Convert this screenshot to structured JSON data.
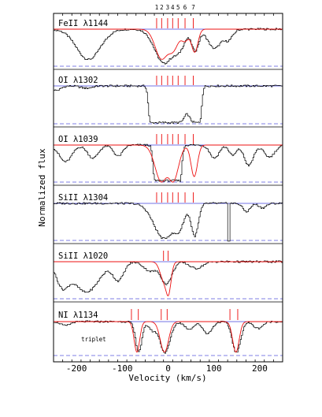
{
  "chart_data": {
    "type": "line",
    "xlabel": "Velocity (km/s)",
    "ylabel": "Normalized flux",
    "xlim": [
      -250,
      250
    ],
    "x_ticks": [
      -200,
      -100,
      0,
      100,
      200
    ],
    "x_tick_labels": [
      "-200",
      "-100",
      "0",
      "100",
      "200"
    ],
    "components": {
      "labels": [
        "1",
        "2",
        "3",
        "4",
        "5",
        "6",
        "7"
      ],
      "velocities": [
        -25,
        -14,
        -1,
        10,
        22,
        37,
        55
      ]
    },
    "colors": {
      "data": "#000000",
      "model": "#ee1111",
      "continuum": "#4444dd",
      "zero": "#5555dd",
      "ticks": "#ee2222"
    },
    "panels": [
      {
        "name": "FeII λ1144",
        "label": "FeII λ1144",
        "tick_velocities": [
          -25,
          -14,
          -1,
          10,
          22,
          37,
          55
        ],
        "absorption": [
          {
            "v": -175,
            "depth": 0.82,
            "width": 26
          },
          {
            "v": -10,
            "depth": 0.92,
            "width": 20
          },
          {
            "v": 20,
            "depth": 0.55,
            "width": 14
          },
          {
            "v": 58,
            "depth": 0.58,
            "width": 8
          },
          {
            "v": 100,
            "depth": 0.52,
            "width": 14
          },
          {
            "v": 130,
            "depth": 0.28,
            "width": 10
          }
        ],
        "model": [
          {
            "v": -14,
            "depth": 0.8,
            "width": 14
          },
          {
            "v": 10,
            "depth": 0.55,
            "width": 12
          },
          {
            "v": 37,
            "depth": 0.3,
            "width": 8
          },
          {
            "v": 58,
            "depth": 0.62,
            "width": 7
          }
        ]
      },
      {
        "name": "OI λ1302",
        "label": "OI λ1302",
        "tick_velocities": [
          -25,
          -14,
          -1,
          10,
          22,
          37,
          55
        ],
        "absorption": [
          {
            "v": -245,
            "depth": 0.12,
            "width": 10
          },
          {
            "v": -180,
            "depth": 0.06,
            "width": 12
          }
        ],
        "saturated": {
          "from": -40,
          "to": 68,
          "floor": 0.03,
          "bump": {
            "v": 40,
            "height": 0.22,
            "width": 6
          }
        },
        "model": []
      },
      {
        "name": "OI λ1039",
        "label": "OI λ1039",
        "tick_velocities": [
          -25,
          -14,
          -1,
          10,
          22,
          37,
          55
        ],
        "absorption": [
          {
            "v": -225,
            "depth": 0.45,
            "width": 14
          },
          {
            "v": -165,
            "depth": 0.35,
            "width": 12
          },
          {
            "v": -110,
            "depth": 0.3,
            "width": 10
          },
          {
            "v": 100,
            "depth": 0.35,
            "width": 10
          },
          {
            "v": 140,
            "depth": 0.28,
            "width": 8
          },
          {
            "v": 175,
            "depth": 0.55,
            "width": 10
          },
          {
            "v": 220,
            "depth": 0.32,
            "width": 12
          }
        ],
        "saturated": {
          "from": -30,
          "to": 25,
          "floor": 0.04,
          "bump": null
        },
        "model": [
          {
            "v": -14,
            "depth": 1.0,
            "width": 14
          },
          {
            "v": 10,
            "depth": 1.0,
            "width": 12
          },
          {
            "v": 57,
            "depth": 0.85,
            "width": 7
          }
        ]
      },
      {
        "name": "SiII λ1304",
        "label": "SiII λ1304",
        "tick_velocities": [
          -25,
          -14,
          -1,
          10,
          22,
          37,
          55
        ],
        "absorption": [
          {
            "v": -10,
            "depth": 0.95,
            "width": 22
          },
          {
            "v": 20,
            "depth": 0.7,
            "width": 12
          },
          {
            "v": 57,
            "depth": 0.88,
            "width": 8
          },
          {
            "v": 170,
            "depth": 0.22,
            "width": 8
          },
          {
            "v": 205,
            "depth": 0.12,
            "width": 8
          }
        ],
        "gap": {
          "from": 126,
          "to": 136
        },
        "model": []
      },
      {
        "name": "SiII λ1020",
        "label": "SiII λ1020",
        "tick_velocities": [
          -10,
          0
        ],
        "absorption": [
          {
            "v": -230,
            "depth": 0.7,
            "width": 14
          },
          {
            "v": -180,
            "depth": 0.82,
            "width": 28
          },
          {
            "v": -110,
            "depth": 0.5,
            "width": 12
          },
          {
            "v": -40,
            "depth": 0.25,
            "width": 14
          },
          {
            "v": -5,
            "depth": 0.6,
            "width": 12
          },
          {
            "v": 60,
            "depth": 0.18,
            "width": 14
          }
        ],
        "model": [
          {
            "v": -10,
            "depth": 0.45,
            "width": 8
          },
          {
            "v": 0,
            "depth": 0.9,
            "width": 6
          }
        ]
      },
      {
        "name": "NI λ1134",
        "label": "NI λ1134",
        "note": "triplet",
        "tick_velocities": [
          -80,
          -65,
          -15,
          -2,
          135,
          152
        ],
        "absorption": [
          {
            "v": -225,
            "depth": 0.12,
            "width": 10
          },
          {
            "v": -65,
            "depth": 0.88,
            "width": 7
          },
          {
            "v": -35,
            "depth": 0.25,
            "width": 8
          },
          {
            "v": -8,
            "depth": 0.92,
            "width": 11
          },
          {
            "v": 45,
            "depth": 0.22,
            "width": 10
          },
          {
            "v": 85,
            "depth": 0.35,
            "width": 10
          },
          {
            "v": 148,
            "depth": 0.92,
            "width": 9
          },
          {
            "v": 195,
            "depth": 0.2,
            "width": 10
          }
        ],
        "model": [
          {
            "v": -68,
            "depth": 0.9,
            "width": 6
          },
          {
            "v": -8,
            "depth": 0.9,
            "width": 9
          },
          {
            "v": 148,
            "depth": 0.9,
            "width": 7
          }
        ]
      }
    ]
  }
}
